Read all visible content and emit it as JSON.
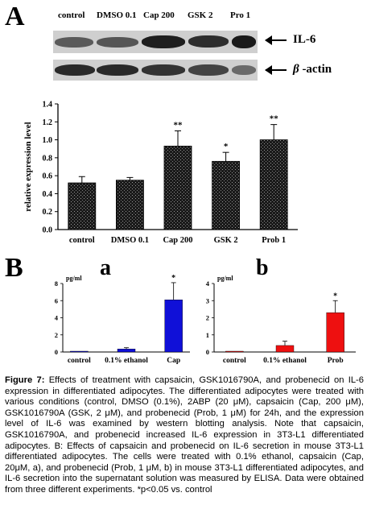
{
  "panel_a": {
    "letter": "A",
    "lanes": [
      "control",
      "DMSO 0.1",
      "Cap 200",
      "GSK 2",
      "Pro 1"
    ],
    "blot_labels": [
      "IL-6",
      "β -actin"
    ],
    "beta_symbol": "β",
    "actin_text": " -actin"
  },
  "chart_data": [
    {
      "type": "bar",
      "title": "",
      "xlabel": "",
      "ylabel": "relative expression level",
      "ylim": [
        0,
        1.4
      ],
      "yticks": [
        "0.0",
        "0.2",
        "0.4",
        "0.6",
        "0.8",
        "1.0",
        "1.2",
        "1.4"
      ],
      "categories": [
        "control",
        "DMSO 0.1",
        "Cap 200",
        "GSK 2",
        "Prob 1"
      ],
      "values": [
        0.52,
        0.55,
        0.93,
        0.76,
        1.0
      ],
      "errors": [
        0.07,
        0.03,
        0.17,
        0.1,
        0.17
      ],
      "annotations": [
        "",
        "",
        "**",
        "*",
        "**"
      ],
      "bar_color": "#1a1a1a"
    },
    {
      "type": "bar",
      "panel": "a",
      "ylabel": "pg/ml",
      "ylim": [
        0,
        8
      ],
      "yticks": [
        "0",
        "2",
        "4",
        "6",
        "8"
      ],
      "categories": [
        "control",
        "0.1% ethanol",
        "Cap"
      ],
      "values": [
        0.05,
        0.35,
        6.1
      ],
      "errors": [
        0.0,
        0.15,
        2.0
      ],
      "annotations": [
        "",
        "",
        "*"
      ],
      "bar_color": "#1010d8"
    },
    {
      "type": "bar",
      "panel": "b",
      "ylabel": "pg/ml",
      "ylim": [
        0,
        4
      ],
      "yticks": [
        "0",
        "1",
        "2",
        "3",
        "4"
      ],
      "categories": [
        "control",
        "0.1% ethanol",
        "Prob"
      ],
      "values": [
        0.03,
        0.38,
        2.3
      ],
      "errors": [
        0.0,
        0.25,
        0.7
      ],
      "annotations": [
        "",
        "",
        "*"
      ],
      "bar_color": "#ee1010"
    }
  ],
  "panel_b": {
    "letter": "B",
    "sub_a": "a",
    "sub_b": "b"
  },
  "caption": {
    "fig_label": "Figure 7:",
    "text": " Effects of treatment with capsaicin, GSK1016790A, and probenecid on IL-6 expression in differentiated adipocytes. The differentiated adipocytes were treated with various conditions (control, DMSO (0.1%), 2ABP (20 μM), capsaicin (Cap, 200 μM), GSK1016790A (GSK, 2 μM), and probenecid (Prob, 1 μM) for 24h, and the expression level of IL-6 was examined by western blotting analysis. Note that capsaicin, GSK1016790A, and probenecid increased IL-6 expression in 3T3-L1 differentiated adipocytes. B: Effects of capsaicin and probenecid on IL-6 secretion in mouse 3T3-L1 differentiated adipocytes. The cells were treated with 0.1% ethanol, capsaicin (Cap, 20μM, a), and probenecid (Prob, 1 μM, b) in mouse 3T3-L1 differentiated adipocytes, and IL-6 secretion into the supernatant solution was measured by ELISA. Data were obtained from three different experiments. *p<0.05 vs. control"
  }
}
